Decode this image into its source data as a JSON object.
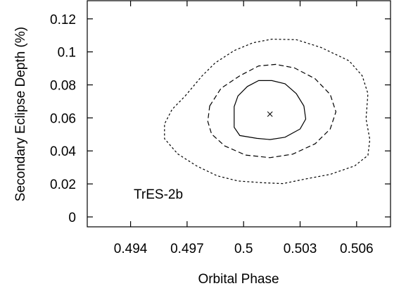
{
  "chart_data": {
    "type": "contour",
    "title": "",
    "xlabel": "Orbital Phase",
    "ylabel": "Secondary Eclipse Depth (%)",
    "xlim": [
      0.4917,
      0.5078
    ],
    "ylim": [
      -0.006,
      0.131
    ],
    "x_ticks": [
      0.494,
      0.497,
      0.5,
      0.503,
      0.506
    ],
    "x_tick_labels": [
      "0.494",
      "0.497",
      "0.5",
      "0.503",
      "0.506"
    ],
    "y_ticks": [
      0,
      0.02,
      0.04,
      0.06,
      0.08,
      0.1,
      0.12
    ],
    "y_tick_labels": [
      "0",
      "0.02",
      "0.04",
      "0.06",
      "0.08",
      "0.1",
      "0.12"
    ],
    "grid": false,
    "annotation": "TrES-2b",
    "best_fit": {
      "x": 0.5014,
      "y": 0.0623,
      "marker": "x"
    },
    "series": [
      {
        "style": "solid",
        "points": [
          [
            0.4997,
            0.0733
          ],
          [
            0.5002,
            0.079
          ],
          [
            0.5008,
            0.0826
          ],
          [
            0.5015,
            0.0826
          ],
          [
            0.5022,
            0.0807
          ],
          [
            0.5028,
            0.0747
          ],
          [
            0.5032,
            0.0672
          ],
          [
            0.5033,
            0.0593
          ],
          [
            0.503,
            0.0533
          ],
          [
            0.5022,
            0.0483
          ],
          [
            0.5014,
            0.0469
          ],
          [
            0.5007,
            0.0476
          ],
          [
            0.4998,
            0.0493
          ],
          [
            0.4995,
            0.0543
          ],
          [
            0.4995,
            0.0668
          ]
        ]
      },
      {
        "style": "dashed",
        "points": [
          [
            0.4982,
            0.0672
          ],
          [
            0.4988,
            0.0779
          ],
          [
            0.4998,
            0.0855
          ],
          [
            0.5008,
            0.0915
          ],
          [
            0.5017,
            0.0924
          ],
          [
            0.5027,
            0.0903
          ],
          [
            0.5038,
            0.0837
          ],
          [
            0.5046,
            0.0742
          ],
          [
            0.5049,
            0.0637
          ],
          [
            0.5046,
            0.0533
          ],
          [
            0.5038,
            0.0443
          ],
          [
            0.5026,
            0.038
          ],
          [
            0.5014,
            0.0359
          ],
          [
            0.5001,
            0.0375
          ],
          [
            0.499,
            0.043
          ],
          [
            0.4983,
            0.0502
          ],
          [
            0.4981,
            0.0579
          ]
        ]
      },
      {
        "style": "dotted",
        "points": [
          [
            0.4969,
            0.0733
          ],
          [
            0.4978,
            0.0855
          ],
          [
            0.4985,
            0.0934
          ],
          [
            0.4995,
            0.1008
          ],
          [
            0.5005,
            0.1055
          ],
          [
            0.5015,
            0.1077
          ],
          [
            0.5028,
            0.1074
          ],
          [
            0.5041,
            0.1027
          ],
          [
            0.5056,
            0.0946
          ],
          [
            0.5063,
            0.0855
          ],
          [
            0.5066,
            0.0747
          ],
          [
            0.5065,
            0.0594
          ],
          [
            0.5067,
            0.0469
          ],
          [
            0.5066,
            0.0373
          ],
          [
            0.5059,
            0.0309
          ],
          [
            0.5046,
            0.0258
          ],
          [
            0.5032,
            0.0228
          ],
          [
            0.5021,
            0.0202
          ],
          [
            0.501,
            0.0207
          ],
          [
            0.4997,
            0.0218
          ],
          [
            0.4986,
            0.0249
          ],
          [
            0.4975,
            0.0309
          ],
          [
            0.4965,
            0.0382
          ],
          [
            0.4958,
            0.0474
          ],
          [
            0.4958,
            0.0563
          ],
          [
            0.4962,
            0.0651
          ]
        ]
      }
    ]
  }
}
